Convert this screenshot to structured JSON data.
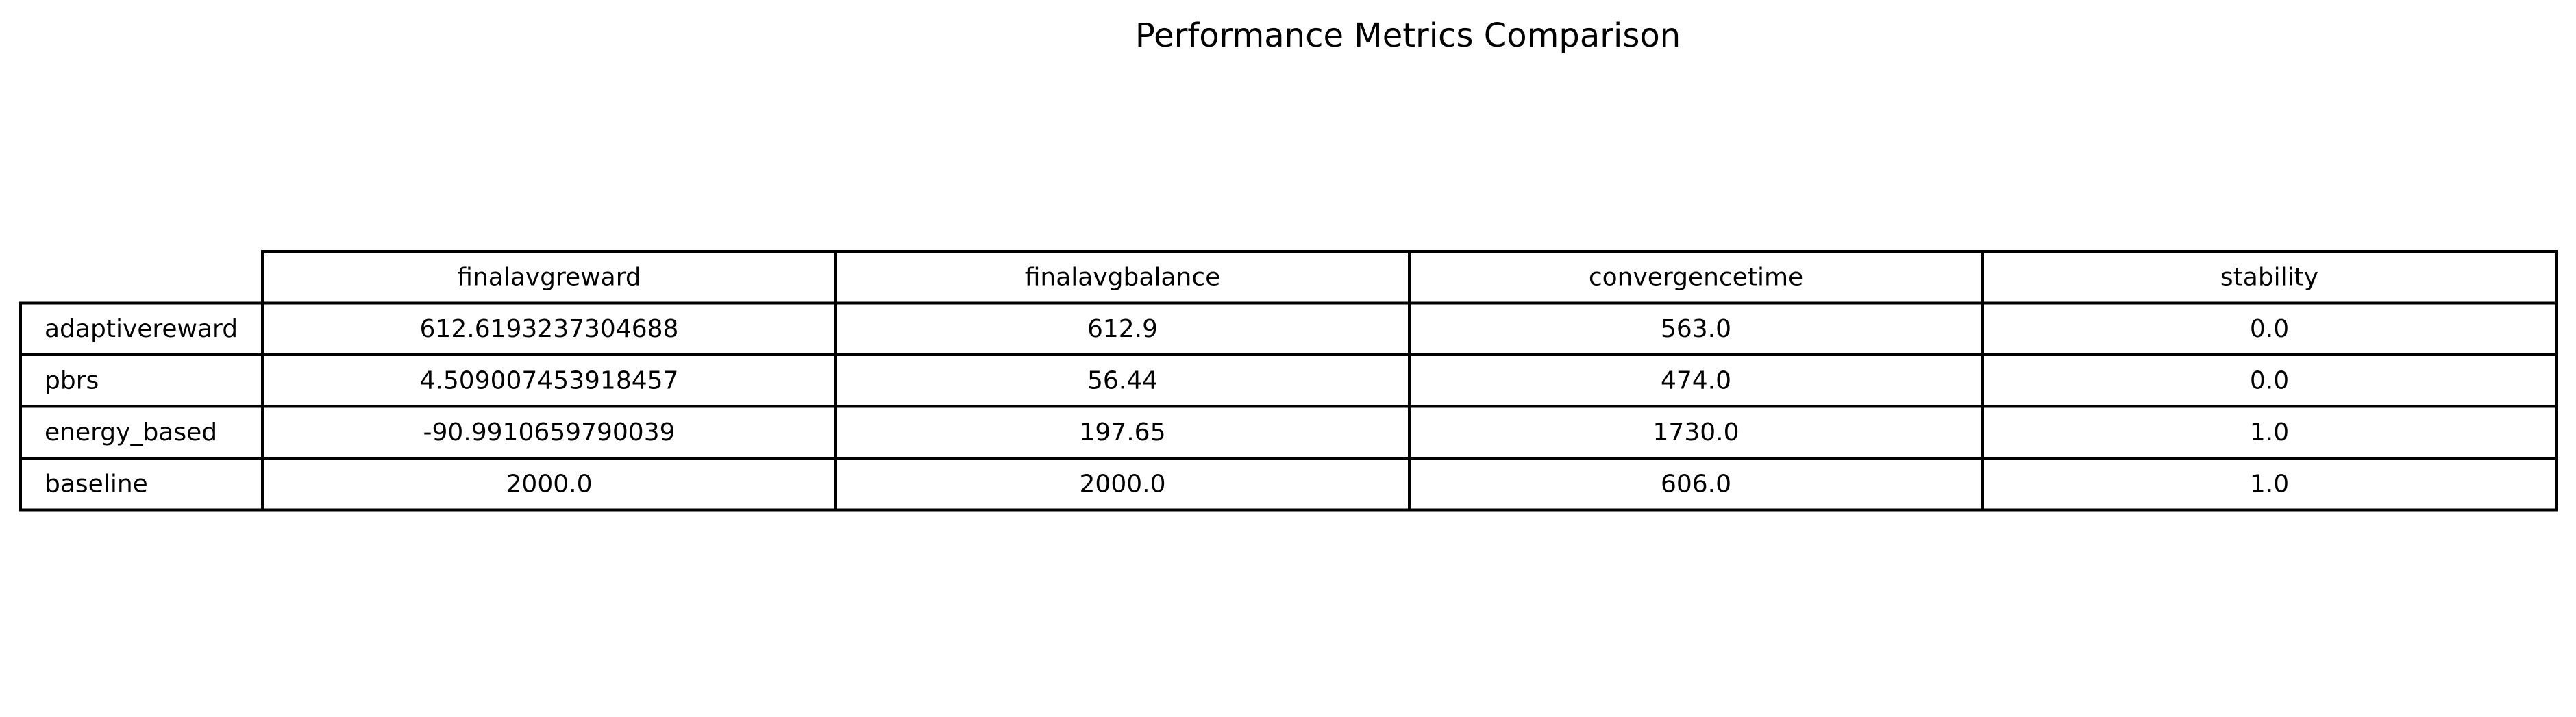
{
  "chart_data": {
    "type": "table",
    "title": "Performance Metrics Comparison",
    "columns": [
      "finalavgreward",
      "finalavgbalance",
      "convergencetime",
      "stability"
    ],
    "rows": [
      {
        "label": "adaptivereward",
        "values": [
          "612.6193237304688",
          "612.9",
          "563.0",
          "0.0"
        ]
      },
      {
        "label": "pbrs",
        "values": [
          "4.509007453918457",
          "56.44",
          "474.0",
          "0.0"
        ]
      },
      {
        "label": "energy_based",
        "values": [
          "-90.9910659790039",
          "197.65",
          "1730.0",
          "1.0"
        ]
      },
      {
        "label": "baseline",
        "values": [
          "2000.0",
          "2000.0",
          "606.0",
          "1.0"
        ]
      }
    ]
  }
}
